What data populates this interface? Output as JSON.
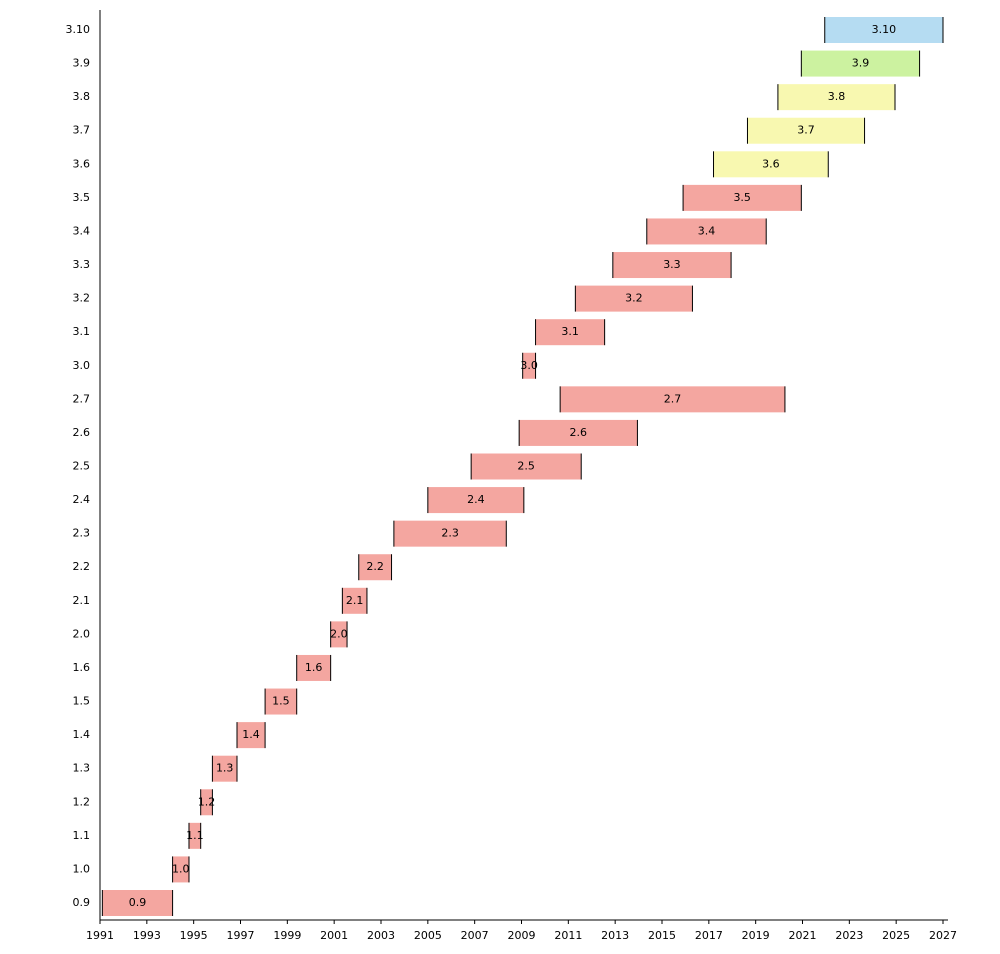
{
  "chart_data": {
    "type": "gantt",
    "categories": [
      "0.9",
      "1.0",
      "1.1",
      "1.2",
      "1.3",
      "1.4",
      "1.5",
      "1.6",
      "2.0",
      "2.1",
      "2.2",
      "2.3",
      "2.4",
      "2.5",
      "2.6",
      "2.7",
      "3.0",
      "3.1",
      "3.2",
      "3.3",
      "3.4",
      "3.5",
      "3.6",
      "3.7",
      "3.8",
      "3.9",
      "3.10"
    ],
    "start": [
      1991.1,
      1994.1,
      1994.8,
      1995.3,
      1995.8,
      1996.85,
      1998.05,
      1999.4,
      2000.85,
      2001.35,
      2002.05,
      2003.55,
      2005.0,
      2006.85,
      2008.9,
      2010.65,
      2009.05,
      2009.6,
      2011.3,
      2012.9,
      2014.35,
      2015.9,
      2017.2,
      2018.65,
      2019.95,
      2020.95,
      2021.95
    ],
    "end": [
      1994.1,
      1994.8,
      1995.3,
      1995.8,
      1996.85,
      1998.05,
      1999.4,
      2000.85,
      2001.55,
      2002.4,
      2003.45,
      2008.35,
      2009.1,
      2011.55,
      2013.95,
      2020.25,
      2009.6,
      2012.55,
      2016.3,
      2017.95,
      2019.45,
      2020.95,
      2022.1,
      2023.65,
      2024.95,
      2026.0,
      2027.0
    ],
    "colors": [
      "#f4a6a0",
      "#f4a6a0",
      "#f4a6a0",
      "#f4a6a0",
      "#f4a6a0",
      "#f4a6a0",
      "#f4a6a0",
      "#f4a6a0",
      "#f4a6a0",
      "#f4a6a0",
      "#f4a6a0",
      "#f4a6a0",
      "#f4a6a0",
      "#f4a6a0",
      "#f4a6a0",
      "#f4a6a0",
      "#f4a6a0",
      "#f4a6a0",
      "#f4a6a0",
      "#f4a6a0",
      "#f4a6a0",
      "#f4a6a0",
      "#f8f8b0",
      "#f8f8b0",
      "#f8f8b0",
      "#ccf2a0",
      "#b5dcf2"
    ],
    "xlim": [
      1991,
      2027
    ],
    "xticks": [
      1991,
      1993,
      1995,
      1997,
      1999,
      2001,
      2003,
      2005,
      2007,
      2009,
      2011,
      2013,
      2015,
      2017,
      2019,
      2021,
      2023,
      2025,
      2027
    ]
  }
}
